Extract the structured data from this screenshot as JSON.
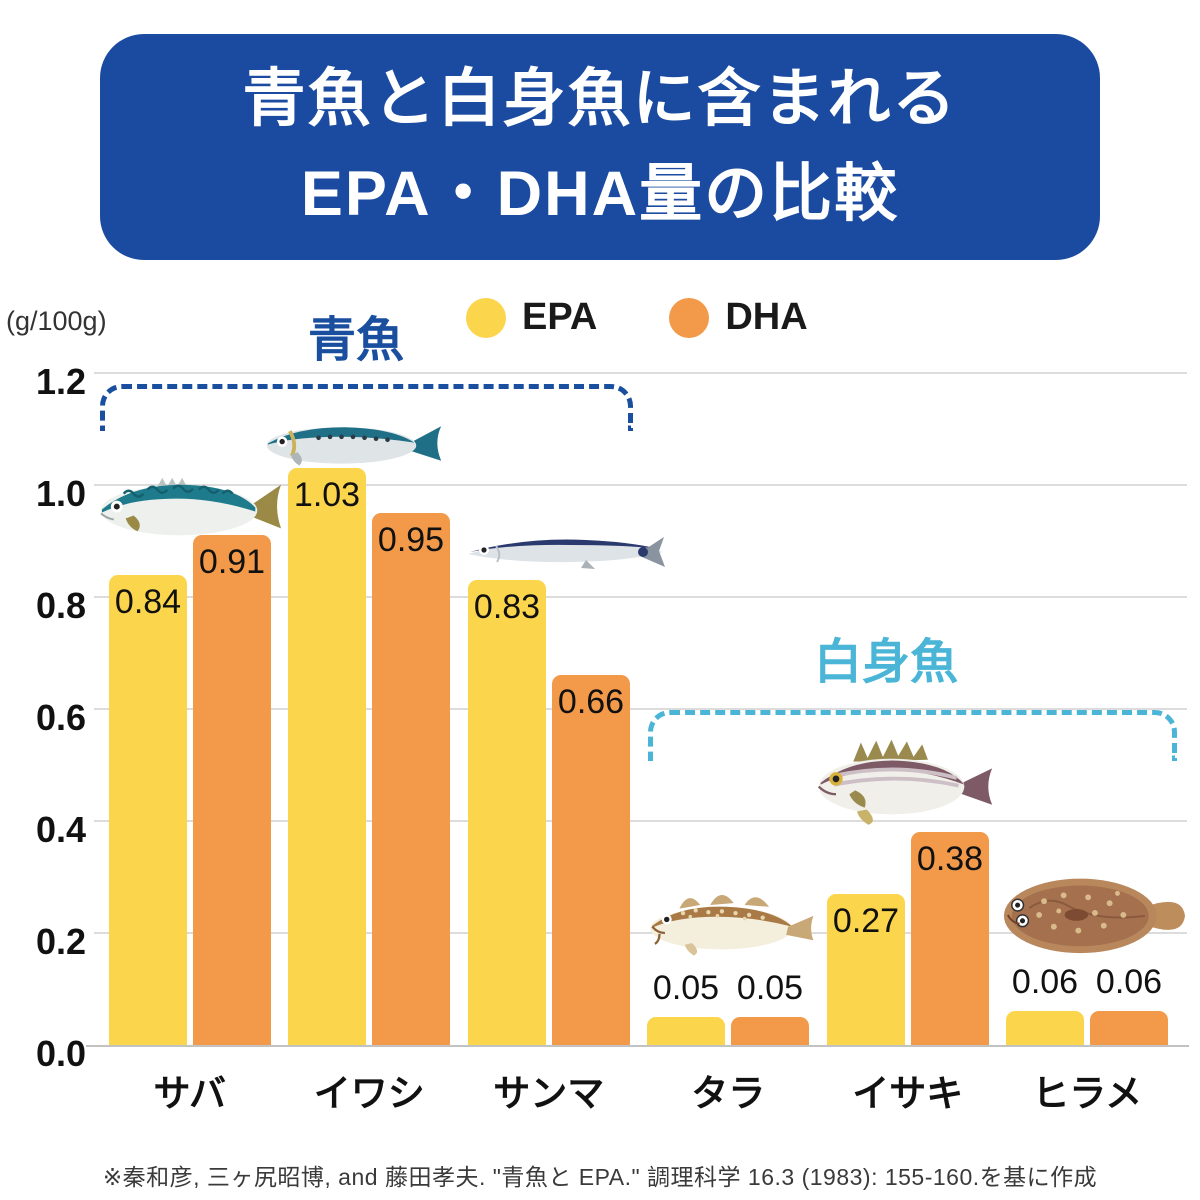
{
  "title": {
    "lines": [
      "青魚と白身魚に含まれる",
      "EPA・DHA量の比較"
    ],
    "banner_color": "#1B4BA0",
    "text_color": "#FFFFFF"
  },
  "unit_label": "(g/100g)",
  "legend": {
    "epa": {
      "label": "EPA",
      "color": "#FBD54B"
    },
    "dha": {
      "label": "DHA",
      "color": "#F2994A"
    }
  },
  "group_annotations": {
    "blue_fish": {
      "label": "青魚",
      "color": "#1A4FA0",
      "categories": [
        "サバ",
        "イワシ",
        "サンマ"
      ]
    },
    "white_fish": {
      "label": "白身魚",
      "color": "#4AB5D6",
      "categories": [
        "タラ",
        "イサキ",
        "ヒラメ"
      ]
    }
  },
  "chart_data": {
    "type": "bar",
    "categories": [
      "サバ",
      "イワシ",
      "サンマ",
      "タラ",
      "イサキ",
      "ヒラメ"
    ],
    "series": [
      {
        "name": "EPA",
        "color": "#FBD54B",
        "values": [
          0.84,
          1.03,
          0.83,
          0.05,
          0.27,
          0.06
        ]
      },
      {
        "name": "DHA",
        "color": "#F2994A",
        "values": [
          0.91,
          0.95,
          0.66,
          0.05,
          0.38,
          0.06
        ]
      }
    ],
    "ylabel": "(g/100g)",
    "ylim": [
      0,
      1.2
    ],
    "ytick_step": 0.2,
    "grid": true,
    "legend_position": "top-center",
    "value_label_decimals": 2
  },
  "fish_illustrations": [
    {
      "category": "サバ",
      "name": "mackerel"
    },
    {
      "category": "イワシ",
      "name": "sardine"
    },
    {
      "category": "サンマ",
      "name": "saury"
    },
    {
      "category": "タラ",
      "name": "cod"
    },
    {
      "category": "イサキ",
      "name": "isaki-grunt"
    },
    {
      "category": "ヒラメ",
      "name": "flounder"
    }
  ],
  "footer": "※秦和彦, 三ヶ尻昭博, and 藤田孝夫. \"青魚と EPA.\" 調理科学 16.3 (1983): 155-160.を基に作成"
}
